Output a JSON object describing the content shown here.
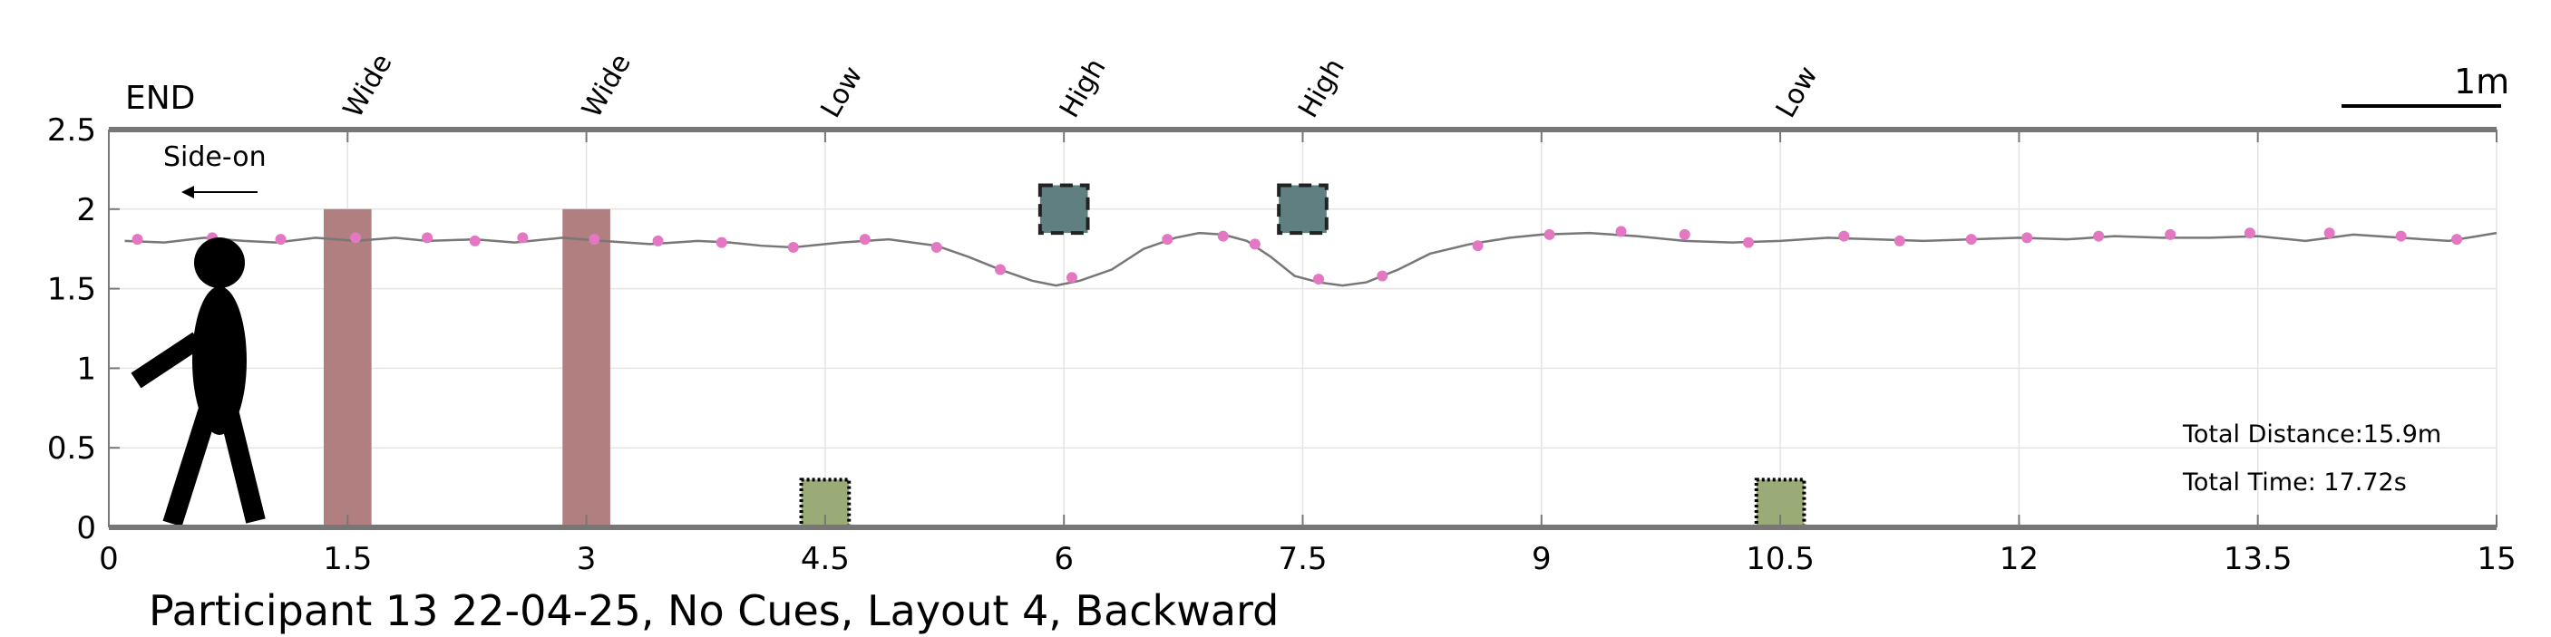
{
  "chart_data": {
    "type": "line",
    "title": "Participant 13 22-04-25, No Cues, Layout 4, Backward",
    "xlim": [
      0,
      15
    ],
    "ylim": [
      0,
      2.5
    ],
    "x_ticks": [
      0,
      1.5,
      3,
      4.5,
      6,
      7.5,
      9,
      10.5,
      12,
      13.5,
      15
    ],
    "x_tick_labels": [
      "0",
      "1.5",
      "3",
      "4.5",
      "6",
      "7.5",
      "9",
      "10.5",
      "12",
      "13.5",
      "15"
    ],
    "y_ticks": [
      0,
      0.5,
      1,
      1.5,
      2,
      2.5
    ],
    "y_tick_labels": [
      "0",
      "0.5",
      "1",
      "1.5",
      "2",
      "2.5"
    ],
    "grid": true,
    "end_label": "END",
    "direction_label": "Side-on",
    "scale_bar_label": "1m",
    "series": [
      {
        "color": "#777777",
        "x": [
          0.1,
          0.35,
          0.6,
          0.85,
          1.05,
          1.3,
          1.55,
          1.8,
          2.0,
          2.3,
          2.55,
          2.85,
          3.1,
          3.4,
          3.7,
          3.9,
          4.1,
          4.3,
          4.6,
          4.9,
          5.2,
          5.4,
          5.6,
          5.8,
          5.95,
          6.1,
          6.3,
          6.5,
          6.7,
          6.85,
          7.0,
          7.15,
          7.3,
          7.45,
          7.6,
          7.75,
          7.9,
          8.1,
          8.3,
          8.55,
          8.8,
          9.0,
          9.3,
          9.6,
          9.9,
          10.2,
          10.5,
          10.8,
          11.1,
          11.4,
          11.7,
          12.0,
          12.3,
          12.6,
          12.9,
          13.2,
          13.5,
          13.8,
          14.1,
          14.4,
          14.7,
          15.0
        ],
        "y": [
          1.8,
          1.79,
          1.82,
          1.8,
          1.79,
          1.82,
          1.8,
          1.82,
          1.8,
          1.81,
          1.79,
          1.82,
          1.8,
          1.78,
          1.8,
          1.79,
          1.77,
          1.76,
          1.79,
          1.81,
          1.77,
          1.7,
          1.62,
          1.55,
          1.52,
          1.55,
          1.62,
          1.75,
          1.82,
          1.85,
          1.84,
          1.8,
          1.7,
          1.58,
          1.54,
          1.52,
          1.54,
          1.62,
          1.72,
          1.78,
          1.82,
          1.84,
          1.85,
          1.83,
          1.8,
          1.79,
          1.8,
          1.82,
          1.81,
          1.8,
          1.81,
          1.82,
          1.81,
          1.83,
          1.82,
          1.82,
          1.83,
          1.8,
          1.84,
          1.82,
          1.8,
          1.85
        ]
      }
    ],
    "markers": {
      "color": "#e377c2",
      "x": [
        0.18,
        0.65,
        1.08,
        1.55,
        2.0,
        2.3,
        2.6,
        3.05,
        3.45,
        3.85,
        4.3,
        4.75,
        5.2,
        5.6,
        6.05,
        6.65,
        7.0,
        7.2,
        7.6,
        8.0,
        8.6,
        9.05,
        9.5,
        9.9,
        10.3,
        10.9,
        11.25,
        11.7,
        12.05,
        12.5,
        12.95,
        13.45,
        13.95,
        14.4,
        14.75
      ],
      "y": [
        1.81,
        1.82,
        1.81,
        1.82,
        1.82,
        1.8,
        1.82,
        1.81,
        1.8,
        1.79,
        1.76,
        1.81,
        1.76,
        1.62,
        1.57,
        1.81,
        1.83,
        1.78,
        1.56,
        1.58,
        1.77,
        1.84,
        1.86,
        1.84,
        1.79,
        1.83,
        1.8,
        1.81,
        1.82,
        1.83,
        1.84,
        1.85,
        1.85,
        1.83,
        1.81
      ]
    },
    "obstacles": [
      {
        "label": "Wide",
        "x_center": 1.5,
        "width": 0.3,
        "y_top": 2.0,
        "color": "#b17f80",
        "type": "wide"
      },
      {
        "label": "Wide",
        "x_center": 3.0,
        "width": 0.3,
        "y_top": 2.0,
        "color": "#b17f80",
        "type": "wide"
      },
      {
        "label": "Low",
        "x_center": 4.5,
        "width": 0.3,
        "y_top": 0.3,
        "color": "#9aab77",
        "type": "low"
      },
      {
        "label": "High",
        "x_center": 6.0,
        "width": 0.3,
        "y_center": 2.0,
        "color": "#5f7f80",
        "type": "high"
      },
      {
        "label": "High",
        "x_center": 7.5,
        "width": 0.3,
        "y_center": 2.0,
        "color": "#5f7f80",
        "type": "high"
      },
      {
        "label": "Low",
        "x_center": 10.5,
        "width": 0.3,
        "y_top": 0.3,
        "color": "#9aab77",
        "type": "low"
      }
    ],
    "info": {
      "distance": "Total Distance:15.9m",
      "time": "Total Time: 17.72s"
    },
    "colors": {
      "axis": "#777777",
      "grid": "#e4e4e4",
      "path": "#777777",
      "marker": "#e377c2",
      "figure": "#000000"
    }
  }
}
